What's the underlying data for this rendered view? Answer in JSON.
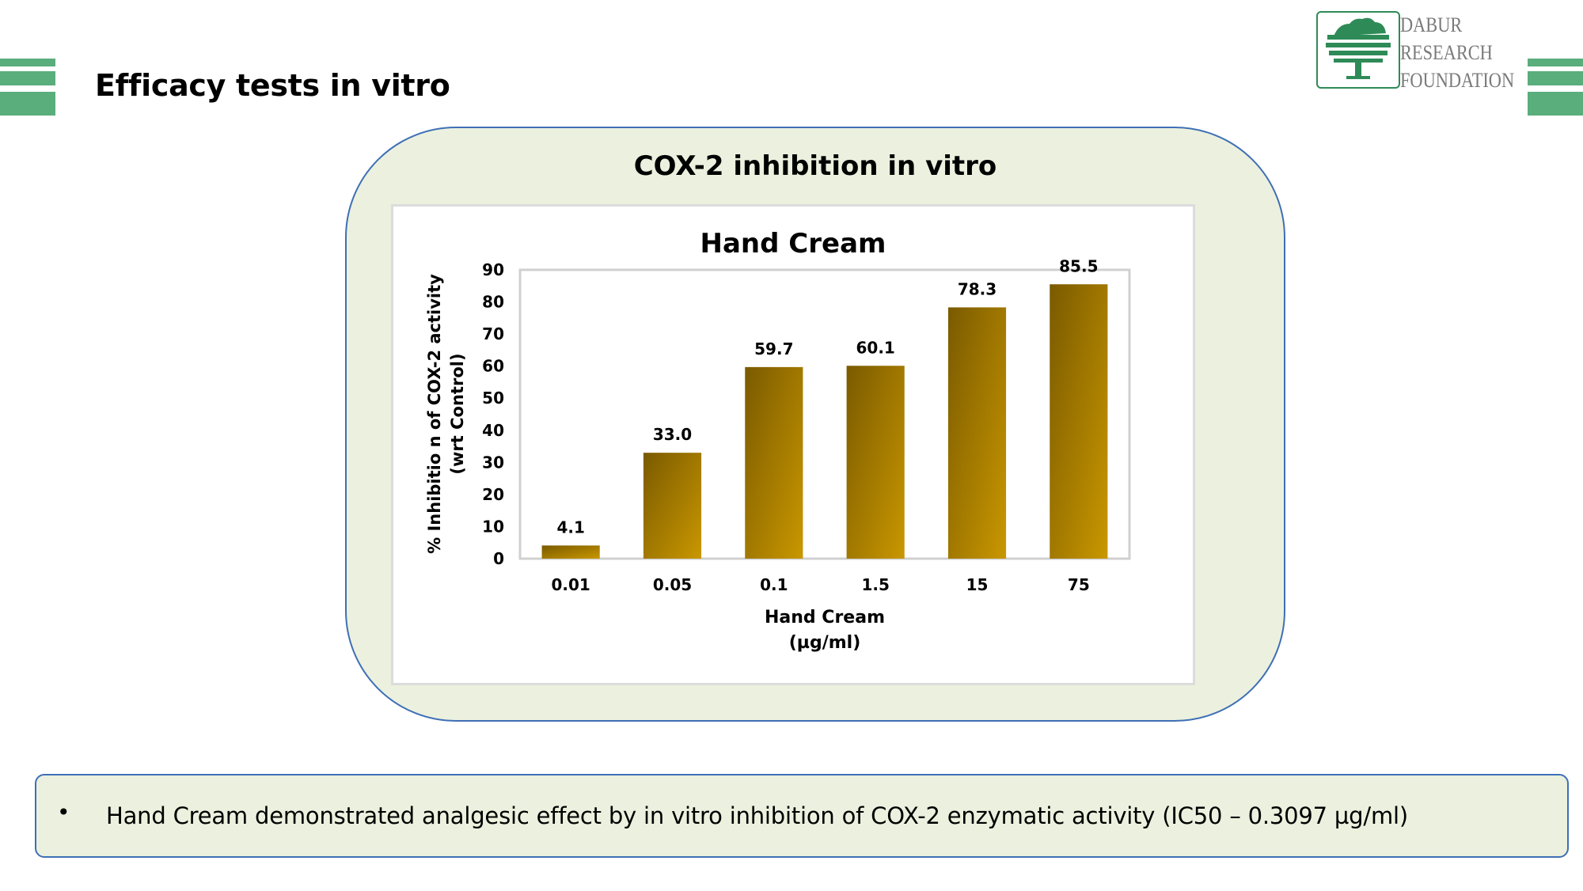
{
  "slide": {
    "title": "Efficacy tests in vitro",
    "panel_title": "COX-2 inhibition in vitro",
    "accent_color": "#5aae7c",
    "panel_fill": "#ebf1de",
    "panel_border": "#3f6fb6"
  },
  "logo": {
    "lines": [
      "DABUR",
      "RESEARCH",
      "FOUNDATION"
    ],
    "color": "#2e8b57"
  },
  "note": {
    "bullet": "•",
    "text": "Hand Cream demonstrated analgesic effect by in vitro inhibition of COX-2 enzymatic activity (IC50 – 0.3097 µg/ml)"
  },
  "chart_data": {
    "type": "bar",
    "title": "Hand Cream",
    "categories": [
      "0.01",
      "0.05",
      "0.1",
      "1.5",
      "15",
      "75"
    ],
    "values": [
      4.1,
      33.0,
      59.7,
      60.1,
      78.3,
      85.5
    ],
    "value_labels": [
      "4.1",
      "33.0",
      "59.7",
      "60.1",
      "78.3",
      "85.5"
    ],
    "xlabel": [
      "Hand Cream",
      "(µg/ml)"
    ],
    "ylabel": [
      "% Inhibitio n of COX-2 activity",
      "(wrt Control)"
    ],
    "ylim": [
      0,
      90
    ],
    "yticks": [
      0,
      10,
      20,
      30,
      40,
      50,
      60,
      70,
      80,
      90
    ],
    "grid": false,
    "legend": "none",
    "bar_color_dark": "#7a5a00",
    "bar_color_light": "#c99700"
  }
}
